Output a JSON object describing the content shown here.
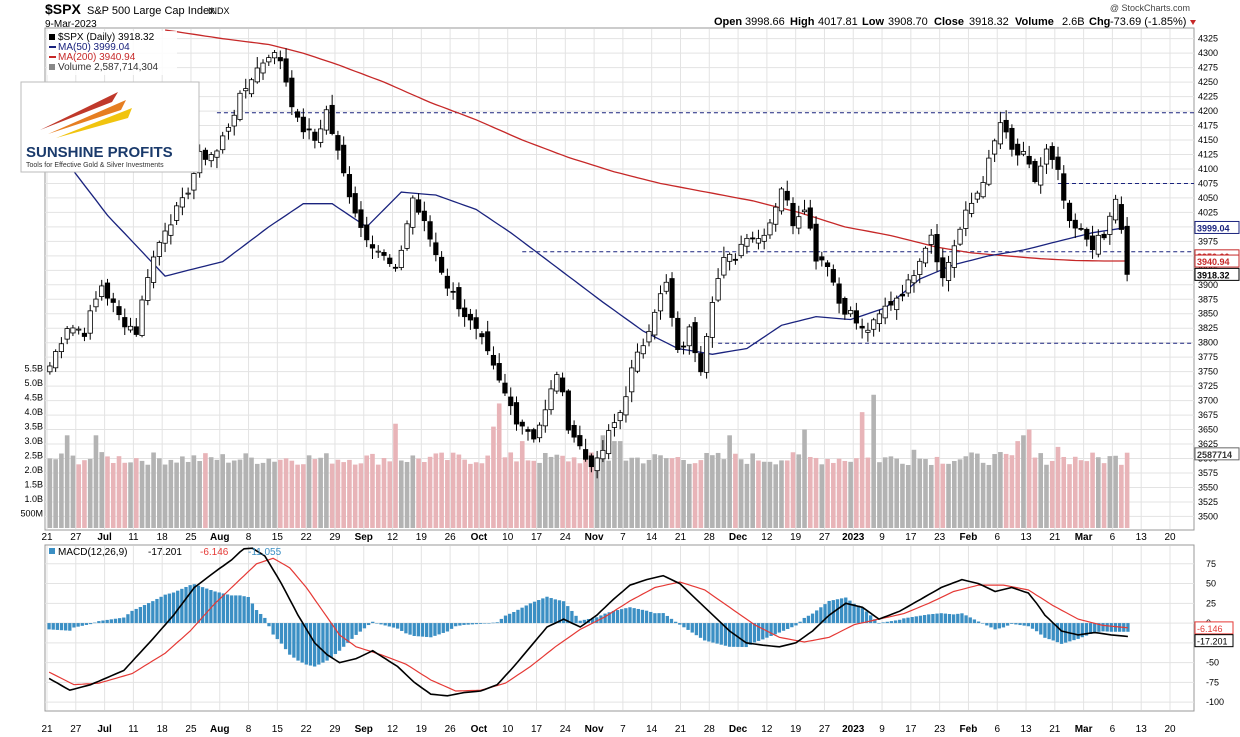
{
  "header": {
    "symbol": "$SPX",
    "index_name": "S&P 500 Large Cap Index",
    "exchange": "INDX",
    "date": "9-Mar-2023",
    "watermark": "@ StockCharts.com",
    "ohlc": {
      "open_label": "Open",
      "open": "3998.66",
      "high_label": "High",
      "high": "4017.81",
      "low_label": "Low",
      "low": "3908.70",
      "close_label": "Close",
      "close": "3918.32",
      "volume_label": "Volume",
      "volume": "2.6B",
      "chg_label": "Chg",
      "chg": "-73.69 (-1.85%)"
    }
  },
  "legend": {
    "price": "$SPX (Daily) 3918.32",
    "ma50": "MA(50) 3999.04",
    "ma200": "MA(200) 3940.94",
    "volume": "Volume 2,587,714,304"
  },
  "logo": {
    "name": "SUNSHINE PROFITS",
    "tagline": "Tools for Effective Gold & Silver Investments"
  },
  "colors": {
    "up": "#000000",
    "down": "#000000",
    "ma50": "#1a237e",
    "ma200": "#c62828",
    "vol_up": "#b3b3b3",
    "vol_down": "#e8b4b8",
    "macd": "#000000",
    "signal": "#e53935",
    "hist": "#3b8fc4",
    "grid": "#e3e3e3",
    "guide": "#1a237e"
  },
  "chart_data": [
    {
      "type": "candlestick",
      "ylim": [
        3480,
        4340
      ],
      "y_ticks": [
        3500,
        3525,
        3550,
        3575,
        3600,
        3625,
        3650,
        3675,
        3700,
        3725,
        3750,
        3775,
        3800,
        3825,
        3850,
        3875,
        3900,
        3925,
        3950,
        3975,
        4000,
        4025,
        4050,
        4075,
        4100,
        4125,
        4150,
        4175,
        4200,
        4225,
        4250,
        4275,
        4300,
        4325
      ],
      "x_tick_labels": [
        "21",
        "27",
        "Jul",
        "11",
        "18",
        "25",
        "Aug",
        "8",
        "15",
        "22",
        "29",
        "Sep",
        "12",
        "19",
        "26",
        "Oct",
        "10",
        "17",
        "24",
        "Nov",
        "7",
        "14",
        "21",
        "28",
        "Dec",
        "12",
        "19",
        "27",
        "2023",
        "9",
        "17",
        "23",
        "Feb",
        "6",
        "13",
        "21",
        "Mar",
        "6",
        "13",
        "20"
      ],
      "bold_ticks": [
        "Jul",
        "Aug",
        "Sep",
        "Oct",
        "Nov",
        "Dec",
        "2023",
        "Feb",
        "Mar"
      ],
      "close_anchors": [
        [
          0,
          3760
        ],
        [
          3,
          3830
        ],
        [
          6,
          3820
        ],
        [
          9,
          3900
        ],
        [
          12,
          3845
        ],
        [
          15,
          3820
        ],
        [
          17,
          3920
        ],
        [
          20,
          4000
        ],
        [
          23,
          4040
        ],
        [
          26,
          4120
        ],
        [
          29,
          4130
        ],
        [
          32,
          4200
        ],
        [
          35,
          4260
        ],
        [
          38,
          4300
        ],
        [
          40,
          4290
        ],
        [
          43,
          4180
        ],
        [
          46,
          4150
        ],
        [
          48,
          4200
        ],
        [
          51,
          4090
        ],
        [
          54,
          4000
        ],
        [
          57,
          3960
        ],
        [
          60,
          3920
        ],
        [
          63,
          4050
        ],
        [
          66,
          3980
        ],
        [
          69,
          3900
        ],
        [
          72,
          3850
        ],
        [
          75,
          3800
        ],
        [
          78,
          3730
        ],
        [
          81,
          3670
        ],
        [
          84,
          3640
        ],
        [
          86,
          3680
        ],
        [
          88,
          3750
        ],
        [
          90,
          3660
        ],
        [
          93,
          3600
        ],
        [
          95,
          3590
        ],
        [
          97,
          3640
        ],
        [
          99,
          3680
        ],
        [
          101,
          3750
        ],
        [
          103,
          3800
        ],
        [
          105,
          3860
        ],
        [
          107,
          3900
        ],
        [
          109,
          3780
        ],
        [
          111,
          3820
        ],
        [
          113,
          3760
        ],
        [
          115,
          3880
        ],
        [
          117,
          3940
        ],
        [
          119,
          3950
        ],
        [
          121,
          3990
        ],
        [
          123,
          3980
        ],
        [
          125,
          4010
        ],
        [
          127,
          4070
        ],
        [
          129,
          4010
        ],
        [
          131,
          4040
        ],
        [
          133,
          3950
        ],
        [
          135,
          3940
        ],
        [
          137,
          3870
        ],
        [
          139,
          3850
        ],
        [
          141,
          3820
        ],
        [
          143,
          3830
        ],
        [
          145,
          3860
        ],
        [
          147,
          3880
        ],
        [
          149,
          3900
        ],
        [
          151,
          3950
        ],
        [
          153,
          3990
        ],
        [
          155,
          3910
        ],
        [
          157,
          3970
        ],
        [
          159,
          4020
        ],
        [
          161,
          4060
        ],
        [
          163,
          4110
        ],
        [
          165,
          4180
        ],
        [
          167,
          4130
        ],
        [
          169,
          4120
        ],
        [
          171,
          4080
        ],
        [
          173,
          4130
        ],
        [
          175,
          4090
        ],
        [
          177,
          4000
        ],
        [
          179,
          3990
        ],
        [
          181,
          3970
        ],
        [
          183,
          3980
        ],
        [
          185,
          4050
        ],
        [
          186,
          3990
        ],
        [
          187,
          3918
        ]
      ],
      "ma50": [
        [
          0,
          4150
        ],
        [
          10,
          4020
        ],
        [
          20,
          3915
        ],
        [
          30,
          3940
        ],
        [
          38,
          4000
        ],
        [
          44,
          4040
        ],
        [
          49,
          4040
        ],
        [
          55,
          4000
        ],
        [
          61,
          4060
        ],
        [
          67,
          4055
        ],
        [
          74,
          4030
        ],
        [
          80,
          3990
        ],
        [
          88,
          3930
        ],
        [
          96,
          3870
        ],
        [
          103,
          3820
        ],
        [
          109,
          3790
        ],
        [
          115,
          3780
        ],
        [
          121,
          3790
        ],
        [
          127,
          3830
        ],
        [
          133,
          3845
        ],
        [
          139,
          3840
        ],
        [
          145,
          3860
        ],
        [
          151,
          3910
        ],
        [
          157,
          3935
        ],
        [
          163,
          3950
        ],
        [
          169,
          3960
        ],
        [
          175,
          3975
        ],
        [
          181,
          3990
        ],
        [
          187,
          3999
        ]
      ],
      "ma200": [
        [
          0,
          4380
        ],
        [
          10,
          4360
        ],
        [
          20,
          4340
        ],
        [
          30,
          4325
        ],
        [
          38,
          4315
        ],
        [
          44,
          4300
        ],
        [
          50,
          4280
        ],
        [
          58,
          4250
        ],
        [
          66,
          4215
        ],
        [
          74,
          4185
        ],
        [
          82,
          4150
        ],
        [
          90,
          4120
        ],
        [
          98,
          4095
        ],
        [
          106,
          4075
        ],
        [
          114,
          4060
        ],
        [
          122,
          4045
        ],
        [
          130,
          4025
        ],
        [
          138,
          4000
        ],
        [
          146,
          3985
        ],
        [
          154,
          3965
        ],
        [
          160,
          3955
        ],
        [
          166,
          3950
        ],
        [
          172,
          3945
        ],
        [
          178,
          3942
        ],
        [
          184,
          3941
        ],
        [
          187,
          3941
        ]
      ],
      "guide_lines": [
        {
          "from": 29,
          "to": 189,
          "value": 4197
        },
        {
          "from": 175,
          "to": 189,
          "value": 4075
        },
        {
          "from": 82,
          "to": 189,
          "value": 3957
        },
        {
          "from": 116,
          "to": 189,
          "value": 3799
        }
      ],
      "last_labels": {
        "ma50": "3999.04",
        "ma200": "3940.94",
        "close": "3918.32",
        "ma200_hidden": "3950.00"
      }
    },
    {
      "type": "bar",
      "name": "volume",
      "ylim": [
        0,
        5.8
      ],
      "y_ticks": [
        0.5,
        1.0,
        1.5,
        2.0,
        2.5,
        3.0,
        3.5,
        4.0,
        4.5,
        5.0,
        5.5
      ],
      "y_tick_labels": [
        "500M",
        "1.0B",
        "1.5B",
        "2.0B",
        "2.5B",
        "3.0B",
        "3.5B",
        "4.0B",
        "4.5B",
        "5.0B",
        "5.5B"
      ],
      "base_value": 2.4,
      "spikes": [
        [
          3,
          3.2
        ],
        [
          8,
          3.2
        ],
        [
          60,
          3.6
        ],
        [
          77,
          3.5
        ],
        [
          78,
          4.3
        ],
        [
          82,
          3.0
        ],
        [
          96,
          3.2
        ],
        [
          98,
          3.0
        ],
        [
          99,
          3.0
        ],
        [
          118,
          3.2
        ],
        [
          131,
          3.4
        ],
        [
          141,
          4.0
        ],
        [
          143,
          4.6
        ],
        [
          150,
          2.7
        ],
        [
          168,
          3.0
        ],
        [
          169,
          3.2
        ],
        [
          170,
          3.4
        ],
        [
          175,
          2.8
        ],
        [
          187,
          2.6
        ]
      ],
      "last_label": "2587714"
    },
    {
      "type": "line",
      "name": "MACD",
      "legend_prefix": "MACD(12,26,9)",
      "legend_values": [
        "-17.201",
        "-6.146",
        "-11.055"
      ],
      "ylim": [
        -110,
        95
      ],
      "y_ticks": [
        75,
        50,
        25,
        0,
        -25,
        -50,
        -75,
        -100
      ],
      "y_tick_labels": [
        "75",
        "50",
        "25",
        "0",
        "-25",
        "-50",
        "-75",
        "-100"
      ],
      "macd": [
        [
          0,
          -70
        ],
        [
          5,
          -85
        ],
        [
          10,
          -78
        ],
        [
          18,
          -60
        ],
        [
          25,
          -20
        ],
        [
          30,
          10
        ],
        [
          35,
          45
        ],
        [
          40,
          65
        ],
        [
          44,
          80
        ],
        [
          46,
          90
        ],
        [
          48,
          98
        ],
        [
          52,
          85
        ],
        [
          56,
          50
        ],
        [
          60,
          10
        ],
        [
          64,
          -25
        ],
        [
          67,
          -40
        ],
        [
          70,
          -50
        ],
        [
          74,
          -45
        ],
        [
          78,
          -35
        ],
        [
          84,
          -55
        ],
        [
          88,
          -75
        ],
        [
          92,
          -90
        ],
        [
          96,
          -92
        ],
        [
          100,
          -88
        ],
        [
          104,
          -86
        ],
        [
          108,
          -78
        ],
        [
          112,
          -55
        ],
        [
          116,
          -30
        ],
        [
          120,
          -5
        ],
        [
          124,
          5
        ],
        [
          128,
          -5
        ],
        [
          132,
          10
        ],
        [
          136,
          30
        ],
        [
          140,
          48
        ],
        [
          144,
          55
        ],
        [
          148,
          60
        ],
        [
          152,
          50
        ],
        [
          156,
          30
        ],
        [
          160,
          10
        ],
        [
          164,
          -10
        ],
        [
          168,
          -25
        ],
        [
          172,
          -28
        ],
        [
          176,
          -30
        ],
        [
          180,
          -25
        ],
        [
          184,
          -10
        ],
        [
          188,
          10
        ],
        [
          192,
          25
        ],
        [
          196,
          20
        ],
        [
          200,
          5
        ],
        [
          205,
          15
        ],
        [
          210,
          30
        ],
        [
          215,
          45
        ],
        [
          220,
          55
        ],
        [
          224,
          50
        ],
        [
          228,
          40
        ],
        [
          232,
          45
        ],
        [
          236,
          38
        ],
        [
          238,
          25
        ],
        [
          240,
          10
        ],
        [
          244,
          -10
        ],
        [
          248,
          -15
        ],
        [
          252,
          -12
        ],
        [
          256,
          -15
        ],
        [
          260,
          -17
        ]
      ],
      "signal": [
        [
          0,
          -62
        ],
        [
          6,
          -78
        ],
        [
          12,
          -76
        ],
        [
          20,
          -64
        ],
        [
          28,
          -38
        ],
        [
          34,
          -10
        ],
        [
          40,
          25
        ],
        [
          46,
          55
        ],
        [
          50,
          75
        ],
        [
          54,
          82
        ],
        [
          58,
          70
        ],
        [
          62,
          45
        ],
        [
          66,
          15
        ],
        [
          70,
          -15
        ],
        [
          74,
          -30
        ],
        [
          80,
          -40
        ],
        [
          86,
          -52
        ],
        [
          92,
          -72
        ],
        [
          98,
          -86
        ],
        [
          104,
          -85
        ],
        [
          110,
          -76
        ],
        [
          116,
          -55
        ],
        [
          122,
          -30
        ],
        [
          128,
          -8
        ],
        [
          134,
          8
        ],
        [
          140,
          28
        ],
        [
          146,
          45
        ],
        [
          152,
          52
        ],
        [
          158,
          42
        ],
        [
          164,
          20
        ],
        [
          170,
          -2
        ],
        [
          176,
          -18
        ],
        [
          182,
          -24
        ],
        [
          188,
          -18
        ],
        [
          194,
          -2
        ],
        [
          200,
          5
        ],
        [
          206,
          12
        ],
        [
          212,
          25
        ],
        [
          218,
          40
        ],
        [
          224,
          48
        ],
        [
          230,
          48
        ],
        [
          236,
          42
        ],
        [
          242,
          22
        ],
        [
          248,
          5
        ],
        [
          254,
          -3
        ],
        [
          260,
          -6
        ]
      ],
      "last_labels": {
        "signal": "-6.146",
        "macd": "-17.201"
      }
    }
  ]
}
